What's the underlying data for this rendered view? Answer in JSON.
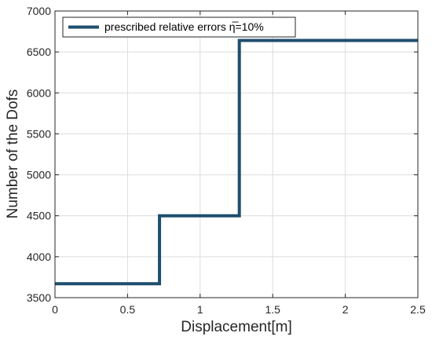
{
  "chart_data": {
    "type": "line",
    "title": "",
    "xlabel": "Displacement[m]",
    "ylabel": "Number of the  Dofs",
    "xlim": [
      0,
      2.5
    ],
    "ylim": [
      3500,
      7000
    ],
    "x_ticks": [
      0,
      0.5,
      1,
      1.5,
      2,
      2.5
    ],
    "x_tick_labels": [
      "0",
      "0.5",
      "1",
      "1.5",
      "2",
      "2.5"
    ],
    "y_ticks": [
      3500,
      4000,
      4500,
      5000,
      5500,
      6000,
      6500,
      7000
    ],
    "y_tick_labels": [
      "3500",
      "4000",
      "4500",
      "5000",
      "5500",
      "6000",
      "6500",
      "7000"
    ],
    "grid": true,
    "legend_position": "top-left",
    "series": [
      {
        "name": "prescribed relative errors η̅=10%",
        "color": "#1f4e6e",
        "line_style": "step",
        "x": [
          0,
          0.72,
          0.72,
          1.27,
          1.27,
          2.5
        ],
        "y": [
          3670,
          3670,
          4500,
          4500,
          6640,
          6640
        ]
      }
    ]
  }
}
